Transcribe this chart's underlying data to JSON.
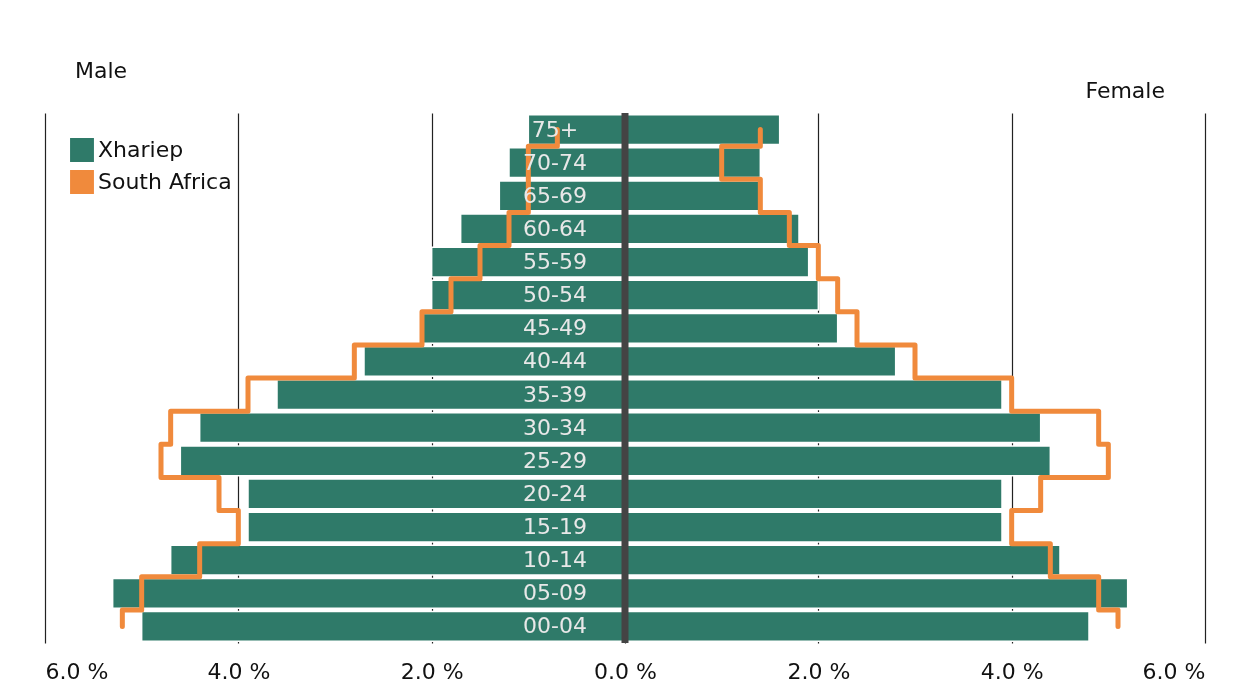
{
  "chart_data": {
    "type": "bar",
    "orientation": "horizontal",
    "categories": [
      "75+",
      "70-74",
      "65-69",
      "60-64",
      "55-59",
      "50-54",
      "45-49",
      "40-44",
      "35-39",
      "30-34",
      "25-29",
      "20-24",
      "15-19",
      "10-14",
      "05-09",
      "00-04"
    ],
    "series": [
      {
        "name": "Xhariep",
        "color": "#2f7a69",
        "values": [
          -1.0,
          -1.2,
          -1.3,
          -1.7,
          -2.0,
          -2.0,
          -2.1,
          -2.7,
          -3.6,
          -4.4,
          -4.6,
          -3.9,
          -3.9,
          -4.7,
          -5.3,
          -5.0
        ]
      },
      {
        "color": "#2f7a69",
        "values": [
          1.6,
          1.4,
          1.4,
          1.8,
          1.9,
          2.0,
          2.2,
          2.8,
          3.9,
          4.3,
          4.4,
          3.9,
          3.9,
          4.5,
          5.2,
          4.8
        ]
      },
      {
        "name": "South Africa",
        "type": "step",
        "color": "#f08a3c",
        "values": [
          -0.7,
          -1.0,
          -1.0,
          -1.2,
          -1.5,
          -1.8,
          -2.1,
          -2.8,
          -3.9,
          -4.7,
          -4.8,
          -4.2,
          -4.0,
          -4.4,
          -5.0,
          -5.2
        ]
      },
      {
        "type": "step",
        "color": "#f08a3c",
        "values": [
          1.4,
          1.0,
          1.4,
          1.7,
          2.0,
          2.2,
          2.4,
          3.0,
          4.0,
          4.9,
          5.0,
          4.3,
          4.0,
          4.4,
          4.9,
          5.1
        ]
      }
    ],
    "xlim": [
      -6,
      6
    ],
    "xticks": [
      {
        "value": -6,
        "label": "6.0 %"
      },
      {
        "value": -4,
        "label": "4.0 %"
      },
      {
        "value": -2,
        "label": "2.0 %"
      },
      {
        "value": 0,
        "label": "0.0 %"
      },
      {
        "value": 2,
        "label": "2.0 %"
      },
      {
        "value": 4,
        "label": "4.0 %"
      },
      {
        "value": 6,
        "label": "6.0 %"
      }
    ],
    "grid": "x",
    "legend": "top left",
    "stacked": true,
    "annotations": [
      "Male",
      "Female"
    ]
  }
}
